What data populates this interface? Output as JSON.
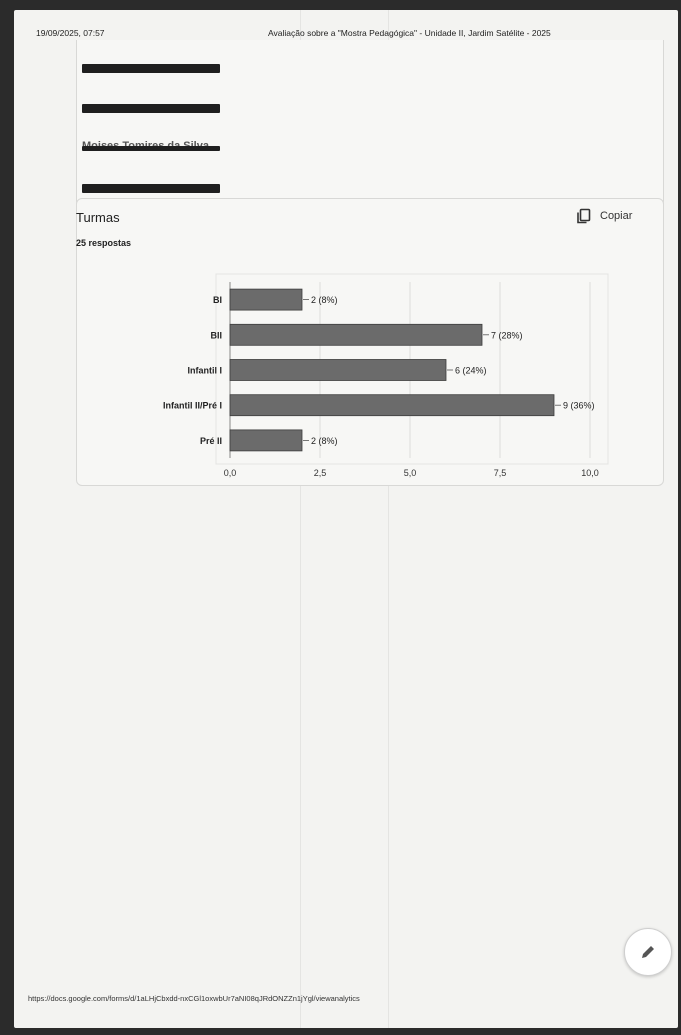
{
  "header": {
    "datetime": "19/09/2025, 07:57",
    "title": "Avaliação sobre a \"Mostra Pedagógica\" - Unidade II, Jardim Satélite - 2025"
  },
  "redacted_entries": [
    "Moises Tomires da Silva"
  ],
  "question": {
    "title": "Turmas",
    "responses": "25 respostas",
    "copy_label": "Copiar"
  },
  "footer": {
    "url": "https://docs.google.com/forms/d/1aLHjCbxdd-nxCGl1oxwbUr7aNI08qJRdONZZn1jYgl/viewanalytics"
  },
  "icons": {
    "copy": "copy-icon",
    "edit": "pencil-icon"
  },
  "colors": {
    "bar": "#6b6b6b",
    "bar_edge": "#3c3c3c"
  },
  "chart_data": {
    "type": "bar",
    "orientation": "horizontal",
    "categories": [
      "BI",
      "BII",
      "Infantil I",
      "Infantil II/Pré I",
      "Pré II"
    ],
    "values": [
      2,
      7,
      6,
      9,
      2
    ],
    "value_labels": [
      "2 (8%)",
      "7 (28%)",
      "6 (24%)",
      "9 (36%)",
      "2 (8%)"
    ],
    "xlim": [
      0,
      10
    ],
    "xticks": [
      "0,0",
      "2,5",
      "5,0",
      "7,5",
      "10,0"
    ],
    "grid": true
  }
}
